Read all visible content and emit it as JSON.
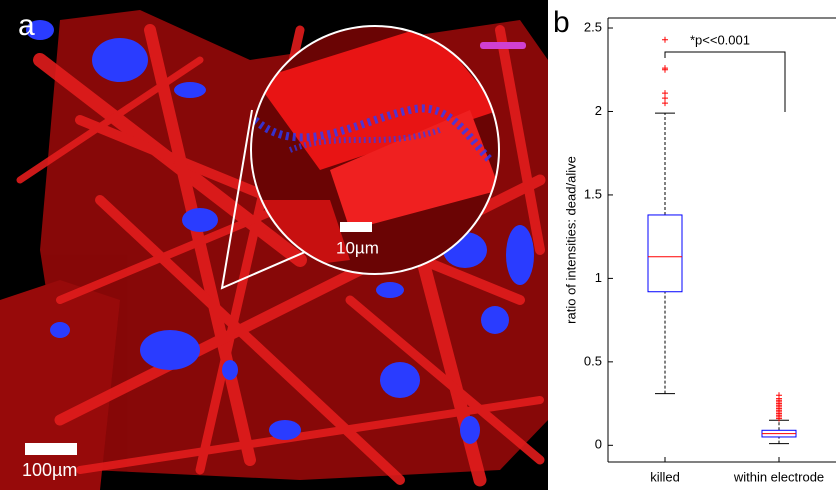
{
  "panel_a": {
    "label": "a",
    "scale_bar": "100µm",
    "inset_scale_bar": "10µm"
  },
  "chart_data": {
    "type": "box",
    "label": "b",
    "ylabel": "ratio of intensities: dead/alive",
    "annotation": "*p<<0.001",
    "categories": [
      "killed",
      "within electrode"
    ],
    "boxes": [
      {
        "whislo": 0.31,
        "q1": 0.92,
        "med": 1.13,
        "q3": 1.38,
        "whishi": 1.99,
        "outliers": [
          2.05,
          2.08,
          2.11,
          2.25,
          2.26,
          2.43
        ]
      },
      {
        "whislo": 0.01,
        "q1": 0.05,
        "med": 0.07,
        "q3": 0.09,
        "whishi": 0.15,
        "outliers": [
          0.16,
          0.17,
          0.18,
          0.19,
          0.2,
          0.21,
          0.22,
          0.23,
          0.24,
          0.25,
          0.26,
          0.27,
          0.28,
          0.3
        ]
      }
    ],
    "box_color": "#0000ff",
    "median_color": "#ff0000",
    "whisker_color": "#000000",
    "outlier_color": "#ff0000",
    "ylim": [
      -0.1,
      2.56
    ],
    "yticks": [
      0,
      0.5,
      1,
      1.5,
      2,
      2.5
    ]
  }
}
